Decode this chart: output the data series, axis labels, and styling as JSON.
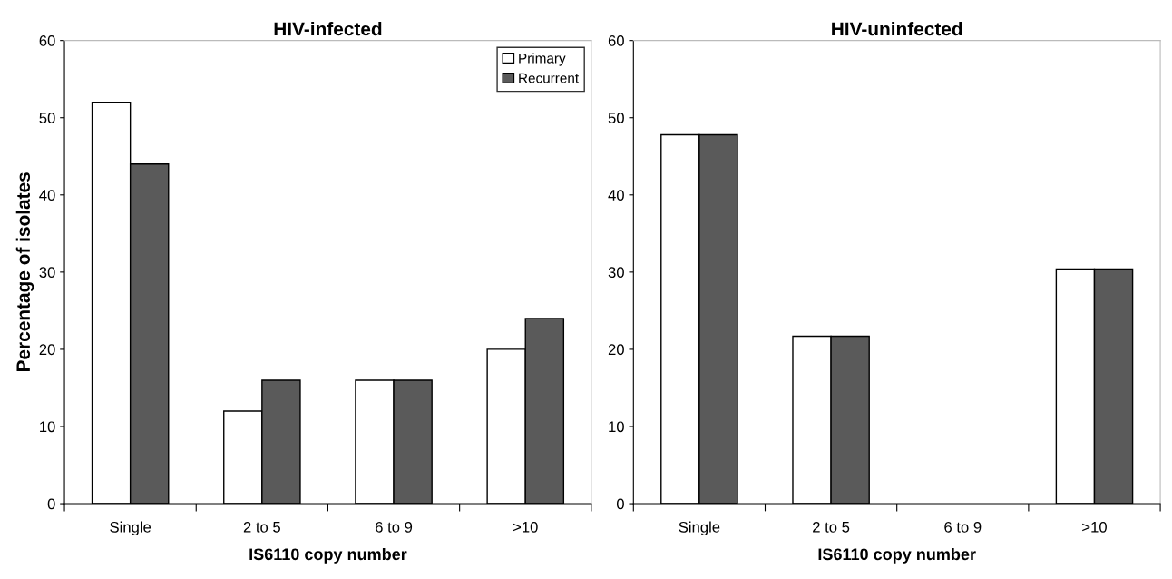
{
  "chart_data": [
    {
      "type": "bar",
      "title": "HIV-infected",
      "xlabel": "IS6110 copy number",
      "ylabel": "Percentage of isolates",
      "categories": [
        "Single",
        "2 to 5",
        "6 to 9",
        ">10"
      ],
      "series": [
        {
          "name": "Primary",
          "color": "#ffffff",
          "values": [
            52,
            12,
            16,
            20
          ]
        },
        {
          "name": "Recurrent",
          "color": "#5a5a5a",
          "values": [
            44,
            16,
            16,
            24
          ]
        }
      ],
      "ylim": [
        0,
        60
      ],
      "yticks": [
        0,
        10,
        20,
        30,
        40,
        50,
        60
      ],
      "legend": "top right",
      "grid": false
    },
    {
      "type": "bar",
      "title": "HIV-uninfected",
      "xlabel": "IS6110 copy number",
      "categories": [
        "Single",
        "2 to 5",
        "6 to 9",
        ">10"
      ],
      "series": [
        {
          "color": "#ffffff",
          "values": [
            47.8,
            21.7,
            0,
            30.4
          ]
        },
        {
          "color": "#5a5a5a",
          "values": [
            47.8,
            21.7,
            0,
            30.4
          ]
        }
      ],
      "ylim": [
        0,
        60
      ],
      "yticks": [
        0,
        10,
        20,
        30,
        40,
        50,
        60
      ],
      "grid": false
    }
  ]
}
